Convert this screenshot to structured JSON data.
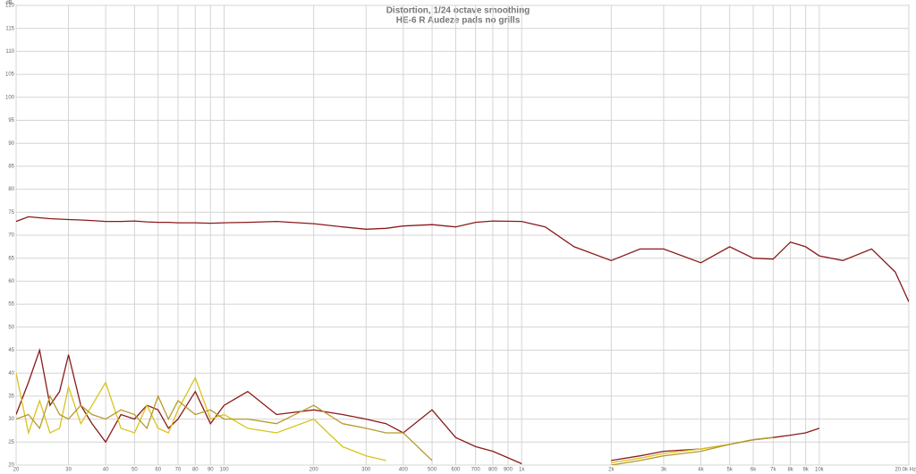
{
  "chart_data": {
    "type": "line",
    "title": "Distortion, 1/24 octave smoothing",
    "subtitle": "HE-6 R Audeze pads no grills",
    "y_label": "dB",
    "xscale": "log",
    "grid": true,
    "x": [
      20,
      22,
      24,
      26,
      28,
      30,
      33,
      36,
      40,
      45,
      50,
      55,
      60,
      65,
      70,
      80,
      90,
      100,
      120,
      150,
      200,
      250,
      300,
      350,
      400,
      500,
      600,
      700,
      800,
      1000,
      1200,
      1500,
      2000,
      2500,
      3000,
      4000,
      5000,
      6000,
      7000,
      8000,
      9000,
      10000,
      12000,
      15000,
      18000,
      20000
    ],
    "series": [
      {
        "color": "#8b1a1a",
        "values": [
          73,
          74,
          73.8,
          73.6,
          73.5,
          73.4,
          73.3,
          73.2,
          73,
          73,
          73.1,
          72.9,
          72.8,
          72.8,
          72.7,
          72.7,
          72.6,
          72.7,
          72.8,
          73,
          72.5,
          71.8,
          71.3,
          71.5,
          72,
          72.3,
          71.8,
          72.8,
          73.1,
          73,
          71.8,
          67.5,
          64.5,
          67,
          67,
          64,
          67.5,
          65,
          64.8,
          68.5,
          67.5,
          65.5,
          64.5,
          67,
          62,
          55.5
        ]
      },
      {
        "color": "#8b1a1a",
        "values": [
          31,
          38,
          45,
          33,
          36,
          44,
          33,
          29,
          25,
          31,
          30,
          33,
          32,
          28,
          30,
          36,
          29,
          33,
          36,
          31,
          32,
          31,
          30,
          29,
          27,
          32,
          26,
          24,
          23,
          20.3,
          null,
          null,
          21,
          22,
          23,
          23.5,
          24.5,
          25.5,
          26,
          26.5,
          27,
          28,
          null,
          null,
          null,
          null
        ]
      },
      {
        "color": "#d8c41c",
        "values": [
          40,
          27,
          34,
          27,
          28,
          37,
          29,
          33,
          38,
          28,
          27,
          33,
          28,
          27,
          32,
          39,
          30,
          31,
          28,
          27,
          30,
          24,
          22,
          21,
          null,
          null,
          null,
          null,
          null,
          null,
          null,
          null,
          20.5,
          21.5,
          22.5,
          23.5,
          24.5,
          25.5,
          null,
          null,
          null,
          null,
          null,
          null,
          null,
          null
        ]
      },
      {
        "color": "#b59a2a",
        "values": [
          30,
          31,
          28,
          35,
          31,
          30,
          33,
          31,
          30,
          32,
          31,
          28,
          35,
          30,
          34,
          31,
          32,
          30,
          30,
          29,
          33,
          29,
          28,
          27,
          27,
          21,
          null,
          null,
          null,
          null,
          null,
          null,
          20,
          21,
          22,
          23,
          24.5,
          25.5,
          26,
          null,
          null,
          null,
          null,
          null,
          null,
          null
        ]
      }
    ],
    "xlim": [
      20,
      20000
    ],
    "ylim": [
      20,
      120
    ],
    "xticks": [
      20,
      30,
      40,
      50,
      60,
      70,
      80,
      90,
      100,
      200,
      300,
      400,
      500,
      600,
      700,
      800,
      900,
      {
        "value": 1000,
        "label": "1k"
      },
      {
        "value": 2000,
        "label": "2k"
      },
      {
        "value": 3000,
        "label": "3k"
      },
      {
        "value": 4000,
        "label": "4k"
      },
      {
        "value": 5000,
        "label": "5k"
      },
      {
        "value": 6000,
        "label": "6k"
      },
      {
        "value": 7000,
        "label": "7k"
      },
      {
        "value": 8000,
        "label": "8k"
      },
      {
        "value": 9000,
        "label": "9k"
      },
      {
        "value": 10000,
        "label": "10k"
      },
      {
        "value": 20000,
        "label": "20.0k Hz"
      }
    ],
    "yticks": [
      20,
      25,
      30,
      35,
      40,
      45,
      50,
      55,
      60,
      65,
      70,
      75,
      80,
      85,
      90,
      95,
      100,
      105,
      110,
      115,
      120
    ]
  }
}
